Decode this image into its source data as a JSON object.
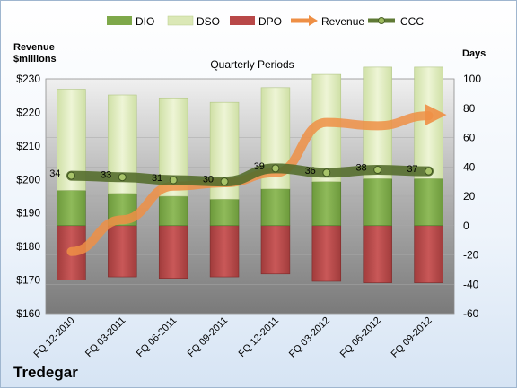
{
  "company": "Tredegar",
  "chart_data": {
    "type": "bar",
    "title": "Quarterly Periods",
    "categories": [
      "FQ 12-2010",
      "FQ 03-2011",
      "FQ 06-2011",
      "FQ 09-2011",
      "FQ 12-2011",
      "FQ 03-2012",
      "FQ 06-2012",
      "FQ 09-2012"
    ],
    "left_axis": {
      "label_line1": "Revenue",
      "label_line2": "$millions",
      "ticks": [
        "$230",
        "$220",
        "$210",
        "$200",
        "$190",
        "$180",
        "$170",
        "$160"
      ],
      "ylim": [
        160,
        230
      ]
    },
    "right_axis": {
      "label": "Days",
      "ticks": [
        "100",
        "80",
        "60",
        "40",
        "20",
        "0",
        "-20",
        "-40",
        "-60"
      ],
      "ylim": [
        -60,
        100
      ]
    },
    "legend": [
      "DIO",
      "DSO",
      "DPO",
      "Revenue",
      "CCC"
    ],
    "colors": {
      "DIO": "#7ea84a",
      "DSO": "#dbe8b6",
      "DPO": "#b84848",
      "Revenue": "#ee8f45",
      "CCC": "#5f7a35"
    },
    "series": [
      {
        "name": "DIO",
        "axis": "right",
        "values": [
          24,
          22,
          20,
          18,
          25,
          30,
          32,
          32
        ]
      },
      {
        "name": "DSO",
        "axis": "right",
        "values": [
          69,
          67,
          67,
          66,
          69,
          73,
          76,
          76
        ]
      },
      {
        "name": "DPO",
        "axis": "right",
        "values": [
          -37,
          -35,
          -36,
          -35,
          -33,
          -38,
          -39,
          -39
        ]
      },
      {
        "name": "Revenue",
        "axis": "left",
        "values": [
          178.5,
          188,
          198,
          199,
          202,
          217,
          216,
          219
        ]
      },
      {
        "name": "CCC",
        "axis": "right",
        "values": [
          34,
          33,
          31,
          30,
          39,
          36,
          38,
          37
        ]
      }
    ],
    "ccc_labels": [
      "34",
      "33",
      "31",
      "30",
      "39",
      "36",
      "38",
      "37"
    ]
  }
}
